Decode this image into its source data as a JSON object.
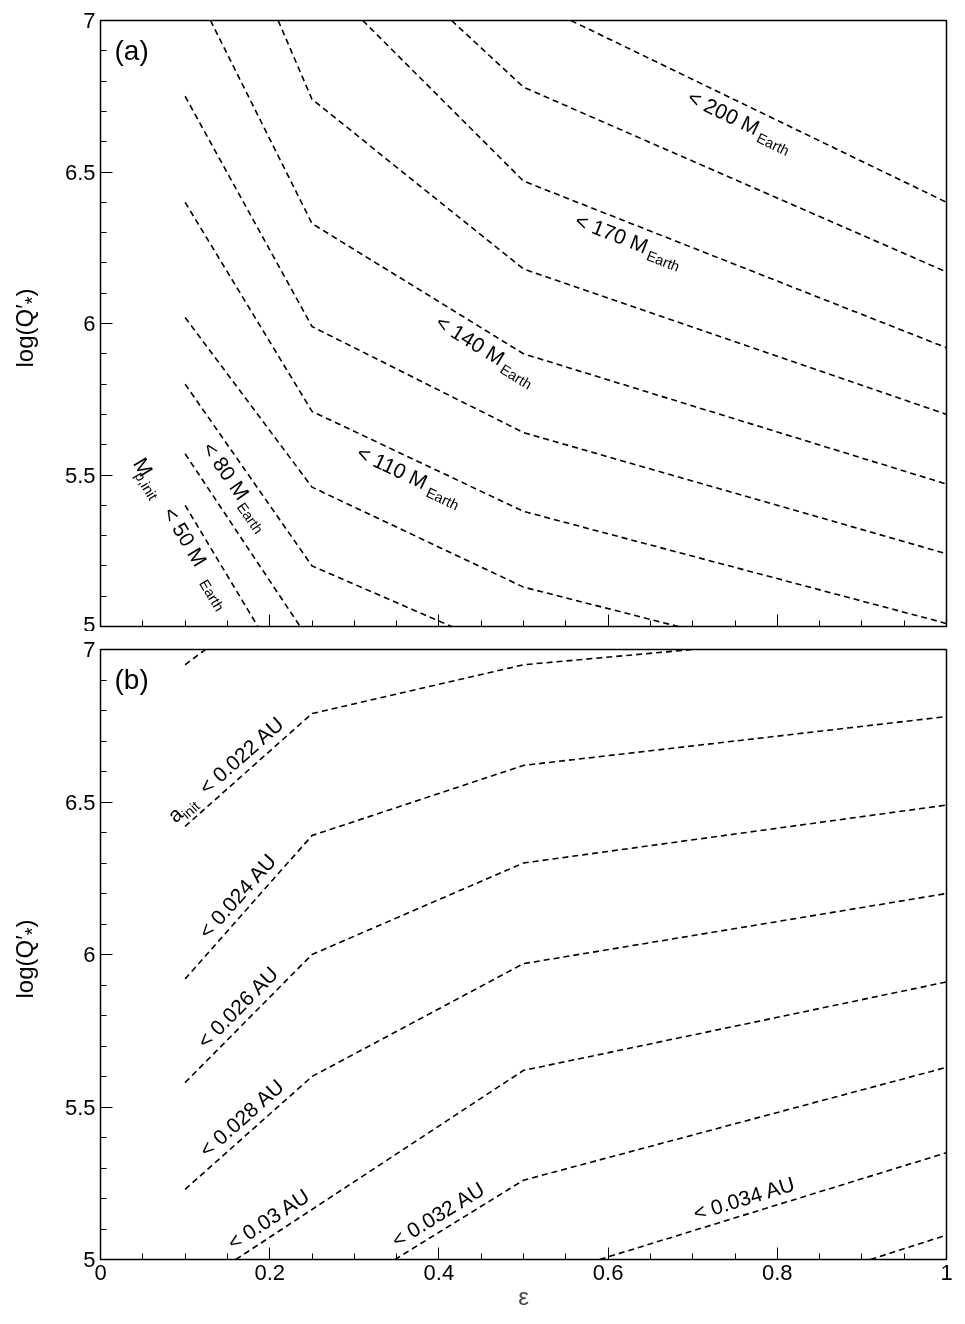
{
  "chart_data": [
    {
      "type": "line",
      "ylabel": "log(Q′$_{*}$)",
      "xlim": [
        0,
        1
      ],
      "ylim": [
        5,
        7
      ],
      "xticks": [
        0,
        0.2,
        0.4,
        0.6,
        0.8,
        1
      ],
      "yticks": [
        5,
        5.5,
        6,
        6.5,
        7
      ],
      "tick_labels": "y",
      "grid": false,
      "line_style": "dashed",
      "annotations": [
        "(a)",
        {
          "text": "M$_{p,init}$ < 50 M$_{Earth}$",
          "x": 0.115,
          "y": 5.33
        },
        {
          "text": "< 80 M$_{Earth}$",
          "x": 0.178,
          "y": 5.488
        },
        {
          "text": "< 110 M$_{Earth}$",
          "x": 0.376,
          "y": 5.544
        },
        {
          "text": "< 140 M$_{Earth}$",
          "x": 0.468,
          "y": 5.955
        },
        {
          "text": "< 170 M$_{Earth}$",
          "x": 0.634,
          "y": 6.323
        },
        {
          "text": "< 200 M$_{Earth}$",
          "x": 0.767,
          "y": 6.715
        }
      ],
      "series": [
        {
          "color": "#000000",
          "x": [
            0.1,
            0.186
          ],
          "values": [
            5.4,
            5.0
          ]
        },
        {
          "color": "#000000",
          "x": [
            0.1,
            0.236
          ],
          "values": [
            5.57,
            5.0
          ]
        },
        {
          "color": "#000000",
          "x": [
            0.1,
            0.25,
            0.415
          ],
          "values": [
            5.8,
            5.2,
            5.0
          ]
        },
        {
          "color": "#000000",
          "x": [
            0.1,
            0.25,
            0.5,
            0.683
          ],
          "values": [
            6.02,
            5.46,
            5.13,
            5.0
          ]
        },
        {
          "color": "#000000",
          "x": [
            0.1,
            0.25,
            0.5,
            1
          ],
          "values": [
            6.4,
            5.71,
            5.38,
            5.01
          ]
        },
        {
          "color": "#000000",
          "x": [
            0.1,
            0.25,
            0.5,
            1
          ],
          "values": [
            6.75,
            5.99,
            5.64,
            5.24
          ]
        },
        {
          "color": "#000000",
          "x": [
            0.13,
            0.25,
            0.5,
            1
          ],
          "values": [
            7.0,
            6.33,
            5.9,
            5.47
          ]
        },
        {
          "color": "#000000",
          "x": [
            0.21,
            0.25,
            0.5,
            1
          ],
          "values": [
            7.0,
            6.74,
            6.18,
            5.7
          ]
        },
        {
          "color": "#000000",
          "x": [
            0.31,
            0.5,
            1
          ],
          "values": [
            7.0,
            6.47,
            5.92
          ]
        },
        {
          "color": "#000000",
          "x": [
            0.415,
            0.5,
            1
          ],
          "values": [
            7.0,
            6.78,
            6.17
          ]
        },
        {
          "color": "#000000",
          "x": [
            0.556,
            1
          ],
          "values": [
            7.0,
            6.4
          ]
        }
      ]
    },
    {
      "type": "line",
      "xlabel": "ε",
      "ylabel": "log(Q′$_{*}$)",
      "xlim": [
        0,
        1
      ],
      "ylim": [
        5,
        7
      ],
      "xticks": [
        0,
        0.2,
        0.4,
        0.6,
        0.8,
        1
      ],
      "yticks": [
        5,
        5.5,
        6,
        6.5,
        7
      ],
      "grid": false,
      "line_style": "dashed",
      "annotations": [
        "(b)",
        {
          "text": "a$_{init}$ < 0.022 AU",
          "x": 0.169,
          "y": 6.59
        },
        {
          "text": "< 0.024 AU",
          "x": 0.179,
          "y": 6.168
        },
        {
          "text": "< 0.026 AU",
          "x": 0.179,
          "y": 5.801
        },
        {
          "text": "< 0.028 AU",
          "x": 0.183,
          "y": 5.435
        },
        {
          "text": "< 0.03 AU",
          "x": 0.213,
          "y": 5.097
        },
        {
          "text": "< 0.032 AU",
          "x": 0.413,
          "y": 5.111
        },
        {
          "text": "< 0.034 AU",
          "x": 0.771,
          "y": 5.155
        }
      ],
      "series": [
        {
          "color": "#000000",
          "x": [
            0.1,
            0.124
          ],
          "values": [
            6.95,
            7.0
          ]
        },
        {
          "color": "#000000",
          "x": [
            0.1,
            0.25,
            0.5,
            0.7
          ],
          "values": [
            6.42,
            6.79,
            6.95,
            7.0
          ]
        },
        {
          "color": "#000000",
          "x": [
            0.1,
            0.25,
            0.5,
            1
          ],
          "values": [
            5.92,
            6.39,
            6.62,
            6.78
          ]
        },
        {
          "color": "#000000",
          "x": [
            0.1,
            0.25,
            0.5,
            1
          ],
          "values": [
            5.58,
            6.0,
            6.3,
            6.49
          ]
        },
        {
          "color": "#000000",
          "x": [
            0.1,
            0.25,
            0.5,
            1
          ],
          "values": [
            5.23,
            5.6,
            5.97,
            6.2
          ]
        },
        {
          "color": "#000000",
          "x": [
            0.16,
            0.5,
            1
          ],
          "values": [
            5.0,
            5.62,
            5.91
          ]
        },
        {
          "color": "#000000",
          "x": [
            0.348,
            0.5,
            1
          ],
          "values": [
            5.0,
            5.26,
            5.63
          ]
        },
        {
          "color": "#000000",
          "x": [
            0.59,
            1
          ],
          "values": [
            5.0,
            5.35
          ]
        },
        {
          "color": "#000000",
          "x": [
            0.91,
            1
          ],
          "values": [
            5.0,
            5.08
          ]
        }
      ]
    }
  ]
}
